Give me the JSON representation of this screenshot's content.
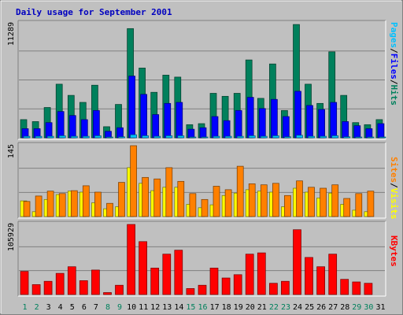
{
  "title": "Daily usage for September 2001",
  "colors": {
    "hits": "#00805c",
    "files": "#0000ff",
    "pages": "#00c0ff",
    "visits": "#ffff00",
    "sites": "#ff8000",
    "kbytes": "#ff0000",
    "weekday": "#000000",
    "weekend": "#00805c"
  },
  "chart_data": [
    {
      "type": "bar",
      "name": "hits-files-pages",
      "ymax": 11289,
      "ymax_label": "11289",
      "side_labels": [
        {
          "text": "Pages",
          "color": "#00c0ff"
        },
        {
          "text": "/",
          "color": "#000000"
        },
        {
          "text": "Files",
          "color": "#0000ff"
        },
        {
          "text": "/",
          "color": "#000000"
        },
        {
          "text": "Hits",
          "color": "#00805c"
        }
      ],
      "series": [
        {
          "name": "Hits",
          "values": [
            1800,
            1600,
            3000,
            5300,
            4200,
            3500,
            5200,
            1100,
            3300,
            10800,
            6900,
            4500,
            6200,
            6000,
            1300,
            1400,
            4400,
            4100,
            4400,
            7700,
            3900,
            7300,
            2700,
            11200,
            5300,
            3400,
            8500,
            4200,
            1500,
            1300,
            1800
          ]
        },
        {
          "name": "Files",
          "values": [
            900,
            900,
            1500,
            2600,
            2200,
            1800,
            2700,
            650,
            1000,
            6100,
            4300,
            2300,
            3400,
            3500,
            850,
            1000,
            2100,
            1700,
            2700,
            4000,
            2900,
            3800,
            2100,
            4600,
            3200,
            2800,
            3500,
            1600,
            1200,
            900,
            1400
          ]
        },
        {
          "name": "Pages",
          "values": [
            150,
            150,
            150,
            200,
            150,
            150,
            200,
            80,
            100,
            300,
            200,
            150,
            200,
            200,
            80,
            80,
            150,
            150,
            150,
            200,
            150,
            200,
            100,
            250,
            150,
            150,
            200,
            100,
            80,
            80,
            80
          ]
        }
      ]
    },
    {
      "type": "bar",
      "name": "visits-sites",
      "ymax": 145,
      "ymax_label": "145",
      "side_labels": [
        {
          "text": "Sites",
          "color": "#ff8000"
        },
        {
          "text": "/",
          "color": "#000000"
        },
        {
          "text": "Visits",
          "color": "#ffff00"
        }
      ],
      "series": [
        {
          "name": "Visits",
          "values": [
            32,
            10,
            35,
            45,
            52,
            50,
            28,
            16,
            20,
            100,
            68,
            53,
            60,
            60,
            25,
            18,
            24,
            43,
            48,
            55,
            52,
            50,
            20,
            58,
            50,
            38,
            48,
            25,
            13,
            10,
            0
          ]
        },
        {
          "name": "Sites",
          "values": [
            31,
            42,
            52,
            47,
            53,
            63,
            50,
            27,
            70,
            145,
            80,
            77,
            100,
            72,
            47,
            35,
            62,
            55,
            103,
            67,
            65,
            68,
            43,
            73,
            60,
            58,
            65,
            37,
            47,
            52,
            0
          ]
        }
      ]
    },
    {
      "type": "bar",
      "name": "kbytes",
      "ymax": 105929,
      "ymax_label": "105929",
      "side_labels": [
        {
          "text": "KBytes",
          "color": "#ff0000"
        }
      ],
      "series": [
        {
          "name": "KBytes",
          "values": [
            35000,
            15000,
            20000,
            32000,
            42000,
            21000,
            37000,
            3000,
            14000,
            105929,
            80000,
            40000,
            61000,
            67000,
            9000,
            14000,
            40000,
            25000,
            30000,
            61000,
            63000,
            17000,
            20000,
            98000,
            56000,
            42000,
            61000,
            23000,
            19000,
            17000,
            0
          ]
        }
      ]
    }
  ],
  "days": [
    "1",
    "2",
    "3",
    "4",
    "5",
    "6",
    "7",
    "8",
    "9",
    "10",
    "11",
    "12",
    "13",
    "14",
    "15",
    "16",
    "17",
    "18",
    "19",
    "20",
    "21",
    "22",
    "23",
    "24",
    "25",
    "26",
    "27",
    "28",
    "29",
    "30",
    "31"
  ],
  "weekend_days": [
    1,
    2,
    8,
    9,
    15,
    16,
    22,
    23,
    29,
    30
  ]
}
